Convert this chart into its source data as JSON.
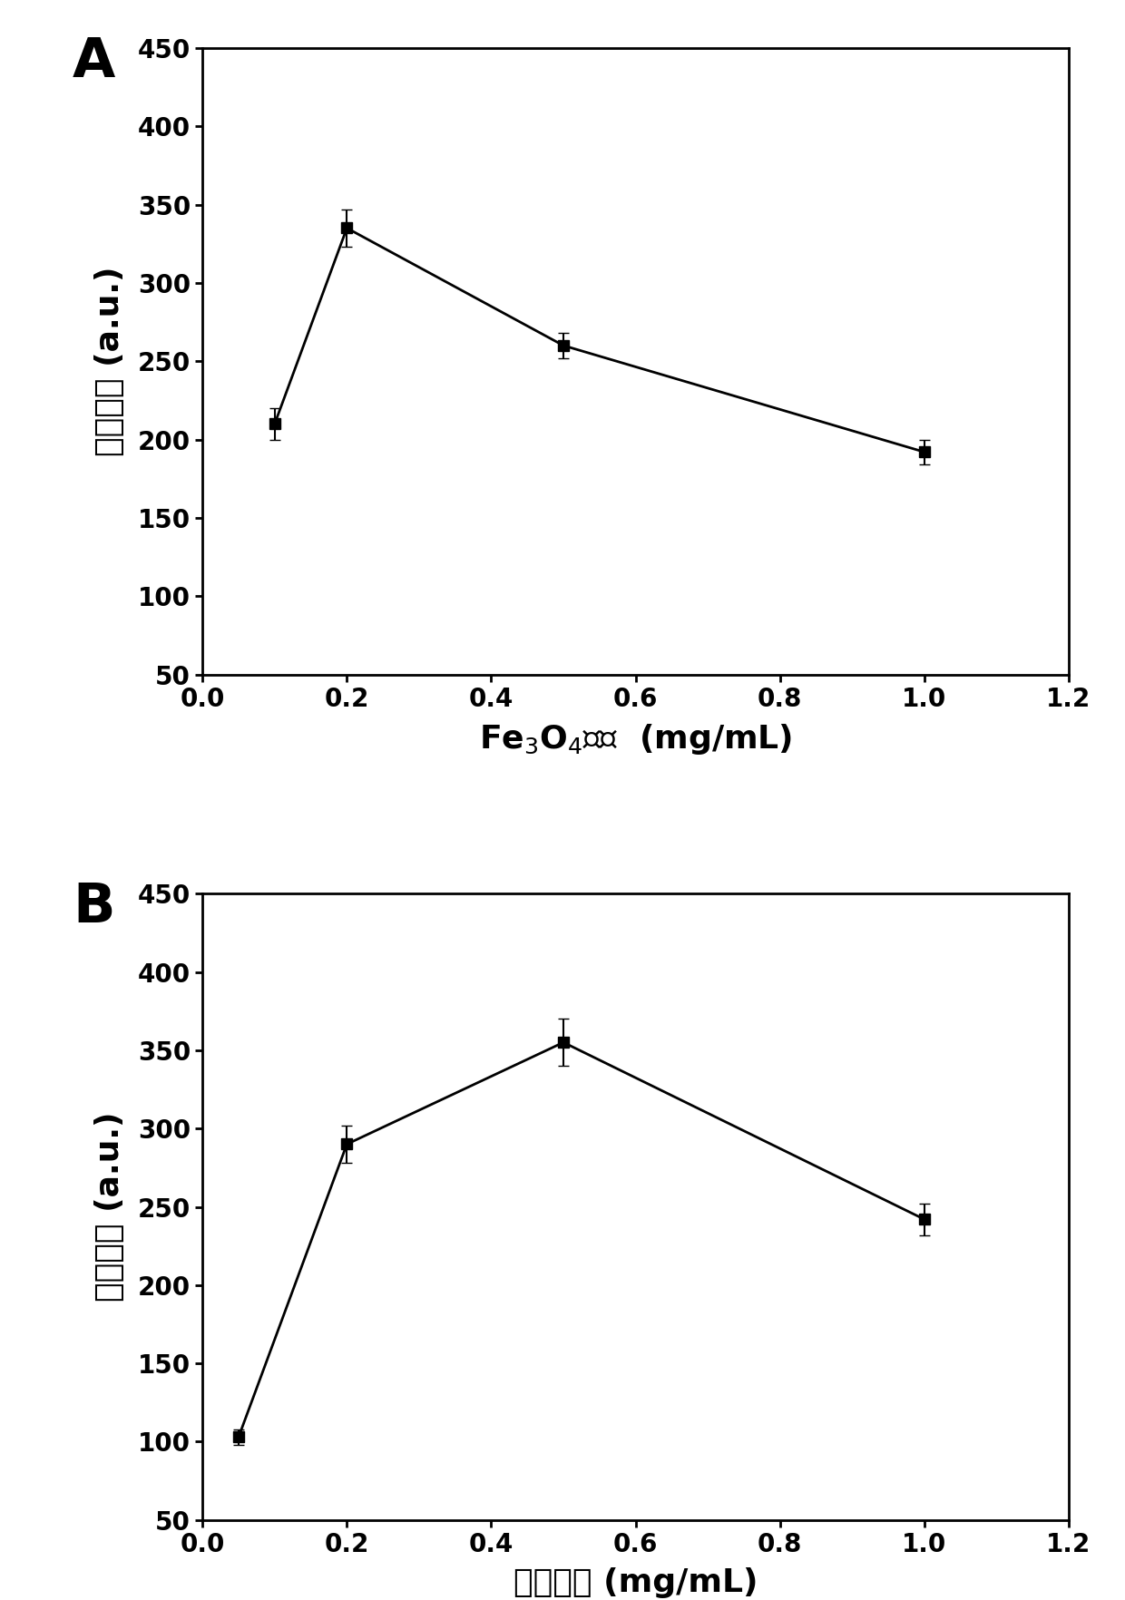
{
  "panel_A": {
    "x": [
      0.1,
      0.2,
      0.5,
      1.0
    ],
    "y": [
      210,
      335,
      260,
      192
    ],
    "yerr": [
      10,
      12,
      8,
      8
    ],
    "xlabel_parts": [
      "Fe",
      "3",
      "O",
      "4",
      "浓度  (mg/mL)"
    ],
    "ylabel": "荧光强度 (a.u.)",
    "label": "A",
    "xlim": [
      0.0,
      1.2
    ],
    "ylim": [
      50,
      450
    ],
    "xticks": [
      0.0,
      0.2,
      0.4,
      0.6,
      0.8,
      1.0,
      1.2
    ],
    "yticks": [
      50,
      100,
      150,
      200,
      250,
      300,
      350,
      400,
      450
    ]
  },
  "panel_B": {
    "x": [
      0.05,
      0.2,
      0.5,
      1.0
    ],
    "y": [
      103,
      290,
      355,
      242
    ],
    "yerr": [
      5,
      12,
      15,
      10
    ],
    "xlabel": "碳点浓度 (mg/mL)",
    "ylabel": "荧光强度 (a.u.)",
    "label": "B",
    "xlim": [
      0.0,
      1.2
    ],
    "ylim": [
      50,
      450
    ],
    "xticks": [
      0.0,
      0.2,
      0.4,
      0.6,
      0.8,
      1.0,
      1.2
    ],
    "yticks": [
      50,
      100,
      150,
      200,
      250,
      300,
      350,
      400,
      450
    ]
  },
  "line_color": "#000000",
  "marker": "s",
  "markersize": 9,
  "linewidth": 2.0,
  "capsize": 4,
  "elinewidth": 1.5,
  "tick_fontsize": 20,
  "axis_label_fontsize": 26,
  "panel_label_fontsize": 44,
  "background_color": "#ffffff"
}
